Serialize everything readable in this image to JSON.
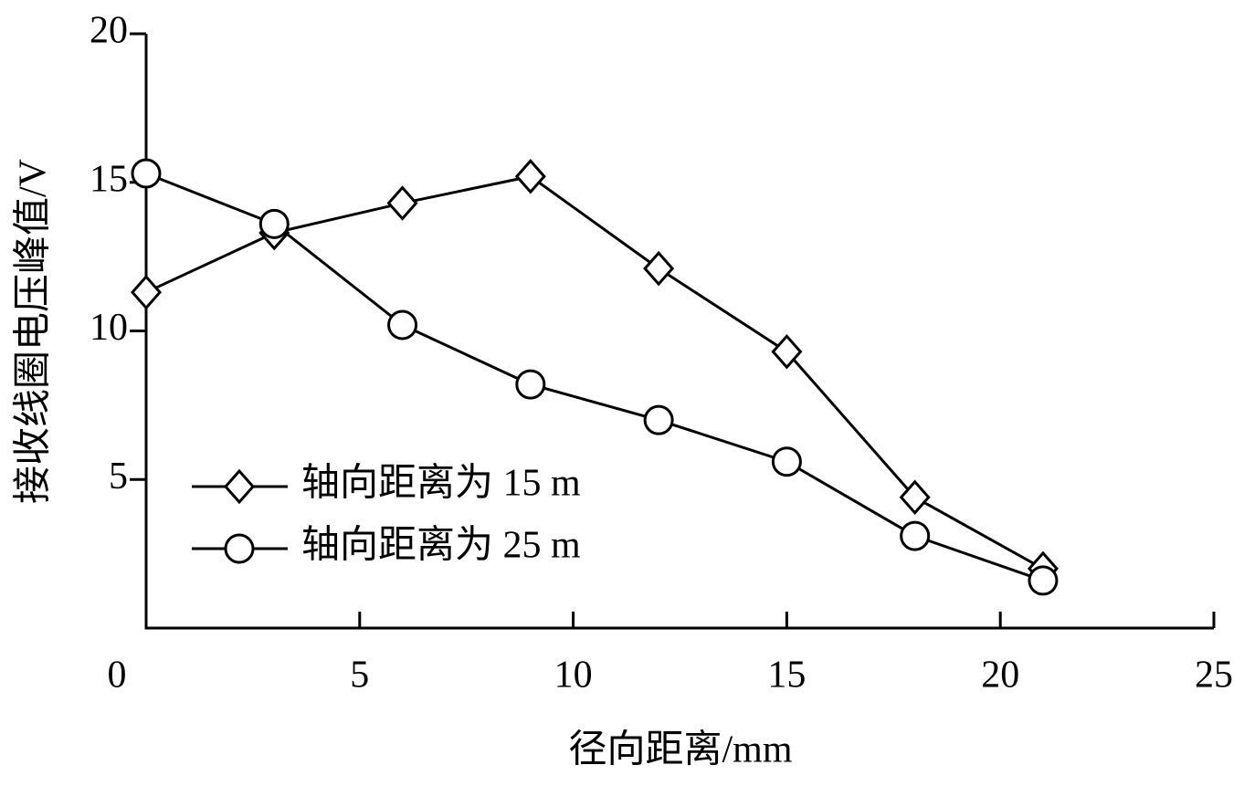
{
  "chart_data": {
    "type": "line",
    "x_label": "径向距离/mm",
    "y_label": "接收线圈电压峰值/V",
    "x": [
      0,
      3,
      6,
      9,
      12,
      15,
      18,
      21
    ],
    "series": [
      {
        "name": "轴向距离为 15 m",
        "marker": "diamond",
        "color": "#000000",
        "values": [
          11.3,
          13.3,
          14.3,
          15.2,
          12.1,
          9.3,
          4.4,
          2.0
        ]
      },
      {
        "name": "轴向距离为 25 m",
        "marker": "circle",
        "color": "#000000",
        "values": [
          15.3,
          13.6,
          10.2,
          8.2,
          7.0,
          5.6,
          3.1,
          1.6
        ]
      }
    ],
    "xlim": [
      0,
      25
    ],
    "xticks": [
      0,
      5,
      10,
      15,
      20,
      25
    ],
    "ylim": [
      0,
      20
    ],
    "yticks": [
      5,
      10,
      15,
      20
    ],
    "grid": false,
    "legend": "left"
  }
}
